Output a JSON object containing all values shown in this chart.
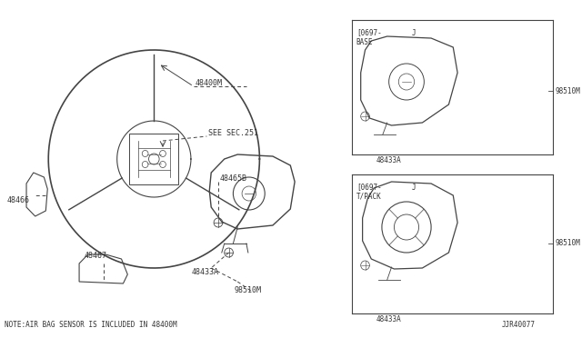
{
  "bg_color": "#ffffff",
  "line_color": "#444444",
  "text_color": "#333333",
  "note_text": "NOTE:AIR BAG SENSOR IS INCLUDED IN 48400M",
  "part_id": "JJR40077",
  "box1_label1": "[0697-",
  "box1_label2": "BASE",
  "box1_j": "J",
  "box2_label1": "[0697-",
  "box2_label2": "T/PACK",
  "box2_j": "J"
}
